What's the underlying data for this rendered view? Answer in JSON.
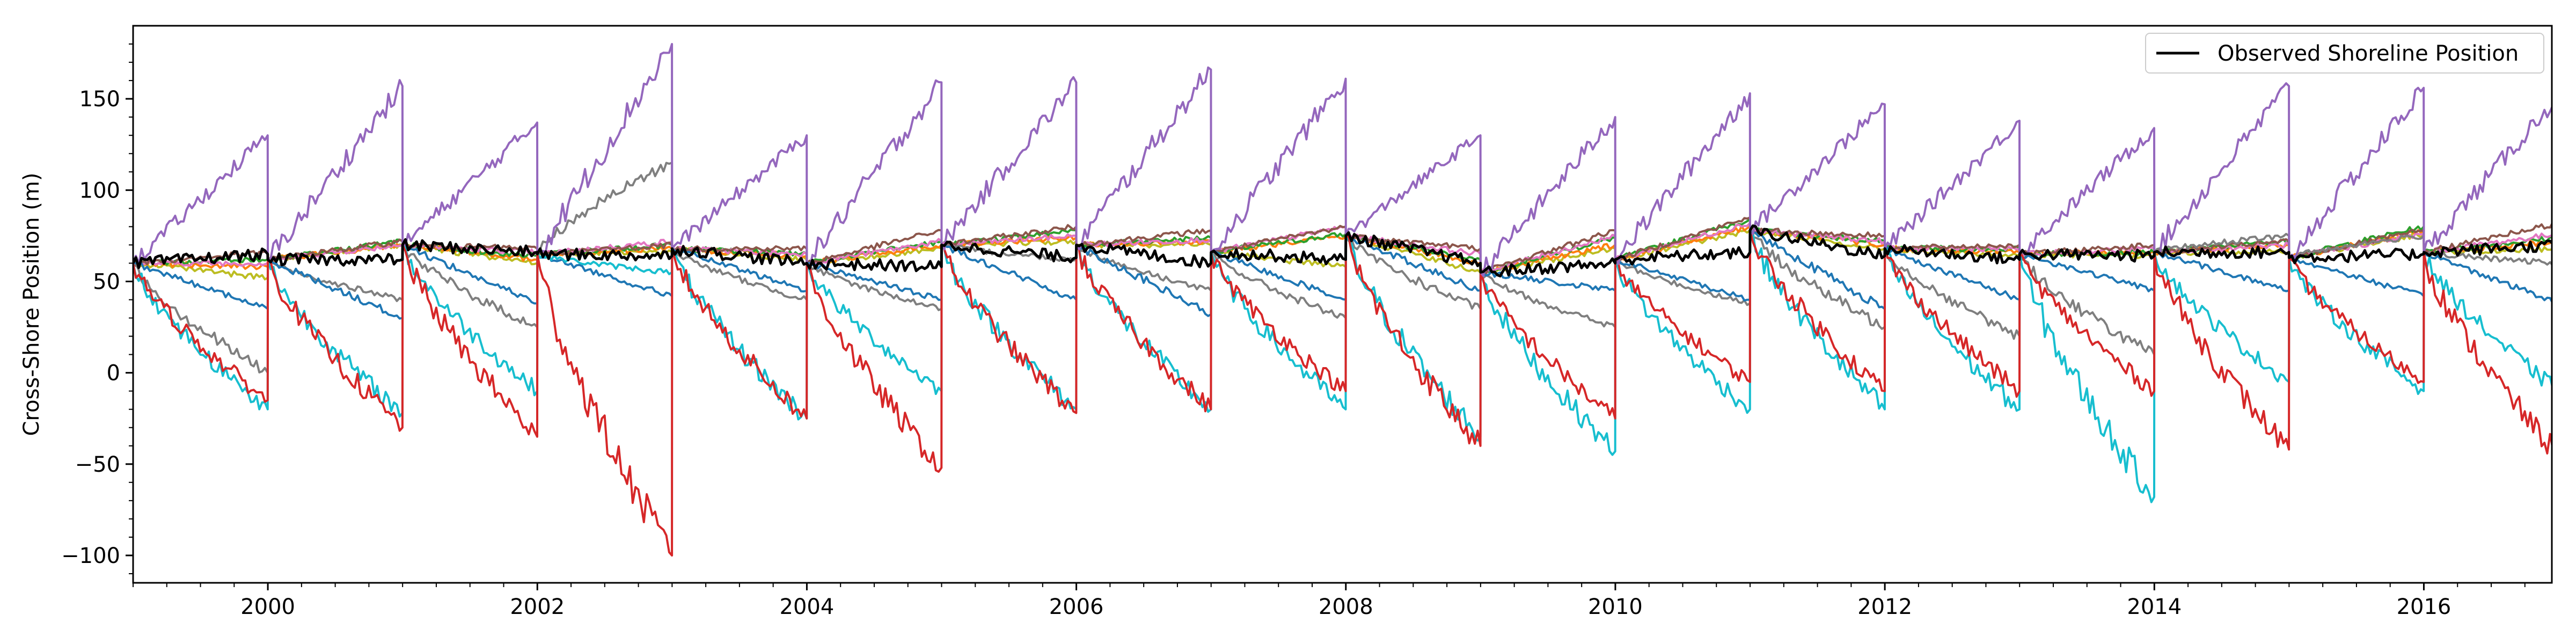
{
  "chart_data": {
    "type": "line",
    "title": "",
    "xlabel": "",
    "ylabel": "Cross-Shore Position (m)",
    "xlim": [
      1999.0,
      2016.95
    ],
    "ylim": [
      -115,
      190
    ],
    "x_ticks": [
      2000,
      2002,
      2004,
      2006,
      2008,
      2010,
      2012,
      2014,
      2016
    ],
    "x_tick_labels": [
      "2000",
      "2002",
      "2004",
      "2006",
      "2008",
      "2010",
      "2012",
      "2014",
      "2016"
    ],
    "y_ticks": [
      -100,
      -50,
      0,
      50,
      100,
      150
    ],
    "y_tick_labels": [
      "−100",
      "−50",
      "0",
      "50",
      "100",
      "150"
    ],
    "grid": false,
    "legend": {
      "position": "top-right",
      "entries": [
        "Observed Shoreline Position"
      ]
    },
    "reset_years": [
      1999,
      2000,
      2001,
      2002,
      2003,
      2004,
      2005,
      2006,
      2007,
      2008,
      2009,
      2010,
      2011,
      2012,
      2013,
      2014,
      2015,
      2016
    ],
    "reset_levels": [
      60,
      62,
      70,
      65,
      68,
      60,
      70,
      70,
      66,
      75,
      55,
      62,
      78,
      68,
      65,
      66,
      63,
      66
    ],
    "series": [
      {
        "name": "Observed Shoreline Position",
        "color": "#000000",
        "kind": "observed",
        "ends": [
          65,
          62,
          66,
          64,
          60,
          58,
          63,
          60,
          62,
          60,
          60,
          66,
          64,
          62,
          64,
          66,
          65,
          70
        ]
      },
      {
        "color": "#9467bd",
        "kind": "forecast",
        "ends": [
          130,
          157,
          137,
          180,
          130,
          159,
          159,
          166,
          161,
          130,
          140,
          153,
          147,
          138,
          134,
          157,
          156,
          152
        ]
      },
      {
        "color": "#d62728",
        "kind": "forecast",
        "ends": [
          -15,
          -30,
          -35,
          -100,
          -25,
          -52,
          -22,
          -20,
          -10,
          -40,
          -25,
          -5,
          -10,
          -10,
          -10,
          -42,
          -5,
          -45
        ]
      },
      {
        "color": "#17becf",
        "kind": "forecast",
        "ends": [
          -20,
          -22,
          -10,
          55,
          -25,
          -10,
          -20,
          -20,
          -20,
          -35,
          -43,
          -20,
          -20,
          -20,
          -68,
          -5,
          -10,
          -10
        ]
      },
      {
        "color": "#1f77b4",
        "kind": "forecast",
        "ends": [
          35,
          30,
          38,
          42,
          45,
          40,
          40,
          32,
          40,
          45,
          45,
          40,
          35,
          40,
          45,
          45,
          42,
          38
        ]
      },
      {
        "color": "#7f7f7f",
        "kind": "forecast",
        "ends": [
          0,
          40,
          25,
          115,
          40,
          35,
          62,
          45,
          30,
          35,
          25,
          38,
          25,
          20,
          10,
          75,
          75,
          60
        ]
      },
      {
        "color": "#8c564b",
        "kind": "forecast",
        "ends": [
          66,
          72,
          68,
          70,
          68,
          78,
          80,
          78,
          80,
          68,
          78,
          85,
          75,
          70,
          70,
          72,
          78,
          82
        ]
      },
      {
        "color": "#e377c2",
        "kind": "forecast",
        "ends": [
          60,
          70,
          66,
          72,
          65,
          72,
          75,
          73,
          80,
          65,
          75,
          82,
          72,
          68,
          68,
          70,
          76,
          76
        ]
      },
      {
        "color": "#2ca02c",
        "kind": "forecast",
        "ends": [
          62,
          72,
          64,
          70,
          65,
          72,
          78,
          74,
          76,
          62,
          74,
          84,
          72,
          68,
          66,
          72,
          80,
          74
        ]
      },
      {
        "color": "#ff7f0e",
        "kind": "forecast",
        "ends": [
          58,
          70,
          62,
          68,
          64,
          70,
          74,
          72,
          75,
          60,
          70,
          80,
          70,
          66,
          66,
          70,
          78,
          72
        ]
      },
      {
        "color": "#bcbd22",
        "kind": "forecast",
        "ends": [
          52,
          70,
          60,
          66,
          62,
          68,
          72,
          70,
          58,
          55,
          68,
          78,
          68,
          64,
          64,
          66,
          76,
          68
        ]
      }
    ]
  }
}
